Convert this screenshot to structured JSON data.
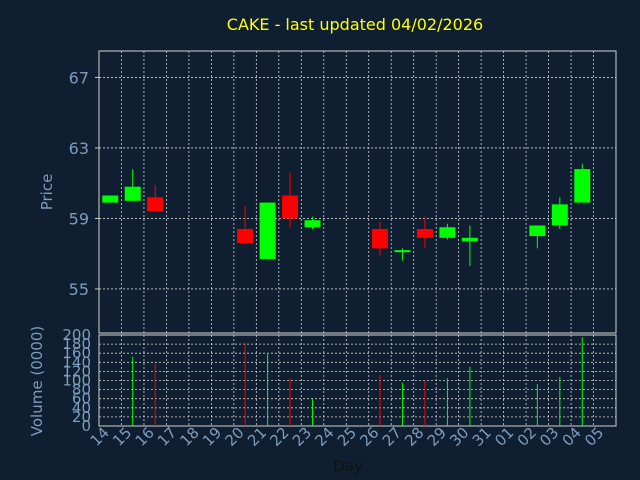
{
  "title": "CAKE - last updated 04/02/2026",
  "chart_data": [
    {
      "type": "candlestick",
      "ylabel": "Price",
      "ylim": [
        52.5,
        68.5
      ],
      "y_ticks": [
        55,
        59,
        63,
        67
      ],
      "colors": {
        "up": "#00ff00",
        "down": "#ff0000",
        "background": "#0f1f31",
        "grid": "#d0d0d0",
        "text": "#7f9bbd",
        "title": "#ffff00"
      },
      "grid": true,
      "candles": [
        {
          "day": "14",
          "open": 59.9,
          "close": 60.3,
          "high": 60.3,
          "low": 59.9
        },
        {
          "day": "15",
          "open": 60.0,
          "close": 60.8,
          "high": 61.8,
          "low": 60.0
        },
        {
          "day": "16",
          "open": 60.2,
          "close": 59.4,
          "high": 60.9,
          "low": 59.4
        },
        {
          "day": "20",
          "open": 58.4,
          "close": 57.6,
          "high": 59.7,
          "low": 57.6
        },
        {
          "day": "21",
          "open": 56.7,
          "close": 59.9,
          "high": 59.9,
          "low": 56.7
        },
        {
          "day": "22",
          "open": 60.3,
          "close": 59.0,
          "high": 61.6,
          "low": 58.5
        },
        {
          "day": "23",
          "open": 58.5,
          "close": 58.9,
          "high": 59.1,
          "low": 58.4
        },
        {
          "day": "26",
          "open": 58.4,
          "close": 57.3,
          "high": 58.8,
          "low": 56.9
        },
        {
          "day": "27",
          "open": 57.1,
          "close": 57.2,
          "high": 57.3,
          "low": 56.6
        },
        {
          "day": "28",
          "open": 58.4,
          "close": 57.9,
          "high": 59.1,
          "low": 57.3
        },
        {
          "day": "29",
          "open": 57.9,
          "close": 58.5,
          "high": 58.7,
          "low": 57.8
        },
        {
          "day": "30",
          "open": 57.7,
          "close": 57.9,
          "high": 58.6,
          "low": 56.3
        },
        {
          "day": "02",
          "open": 58.0,
          "close": 58.6,
          "high": 58.6,
          "low": 57.3
        },
        {
          "day": "03",
          "open": 58.6,
          "close": 59.8,
          "high": 60.2,
          "low": 58.4
        },
        {
          "day": "04",
          "open": 59.9,
          "close": 61.8,
          "high": 62.1,
          "low": 59.9
        }
      ]
    },
    {
      "type": "bar",
      "ylabel": "Volume (0000)",
      "ylim": [
        0,
        200
      ],
      "y_ticks": [
        0,
        20,
        40,
        60,
        80,
        100,
        120,
        140,
        160,
        180,
        200
      ],
      "xlabel": "Day",
      "x_ticks": [
        "14",
        "15",
        "16",
        "17",
        "18",
        "19",
        "20",
        "21",
        "22",
        "23",
        "24",
        "25",
        "26",
        "27",
        "28",
        "29",
        "30",
        "31",
        "01",
        "02",
        "03",
        "04",
        "05"
      ],
      "grid": true,
      "bars": [
        {
          "day": "15",
          "value": 152,
          "direction": "up"
        },
        {
          "day": "16",
          "value": 138,
          "direction": "down"
        },
        {
          "day": "20",
          "value": 183,
          "direction": "down"
        },
        {
          "day": "21",
          "value": 158,
          "direction": "up"
        },
        {
          "day": "22",
          "value": 105,
          "direction": "down"
        },
        {
          "day": "23",
          "value": 60,
          "direction": "up"
        },
        {
          "day": "26",
          "value": 112,
          "direction": "down"
        },
        {
          "day": "27",
          "value": 95,
          "direction": "up"
        },
        {
          "day": "28",
          "value": 100,
          "direction": "down"
        },
        {
          "day": "29",
          "value": 105,
          "direction": "up"
        },
        {
          "day": "30",
          "value": 130,
          "direction": "up"
        },
        {
          "day": "02",
          "value": 92,
          "direction": "up"
        },
        {
          "day": "03",
          "value": 108,
          "direction": "up"
        },
        {
          "day": "04",
          "value": 195,
          "direction": "up"
        }
      ]
    }
  ]
}
